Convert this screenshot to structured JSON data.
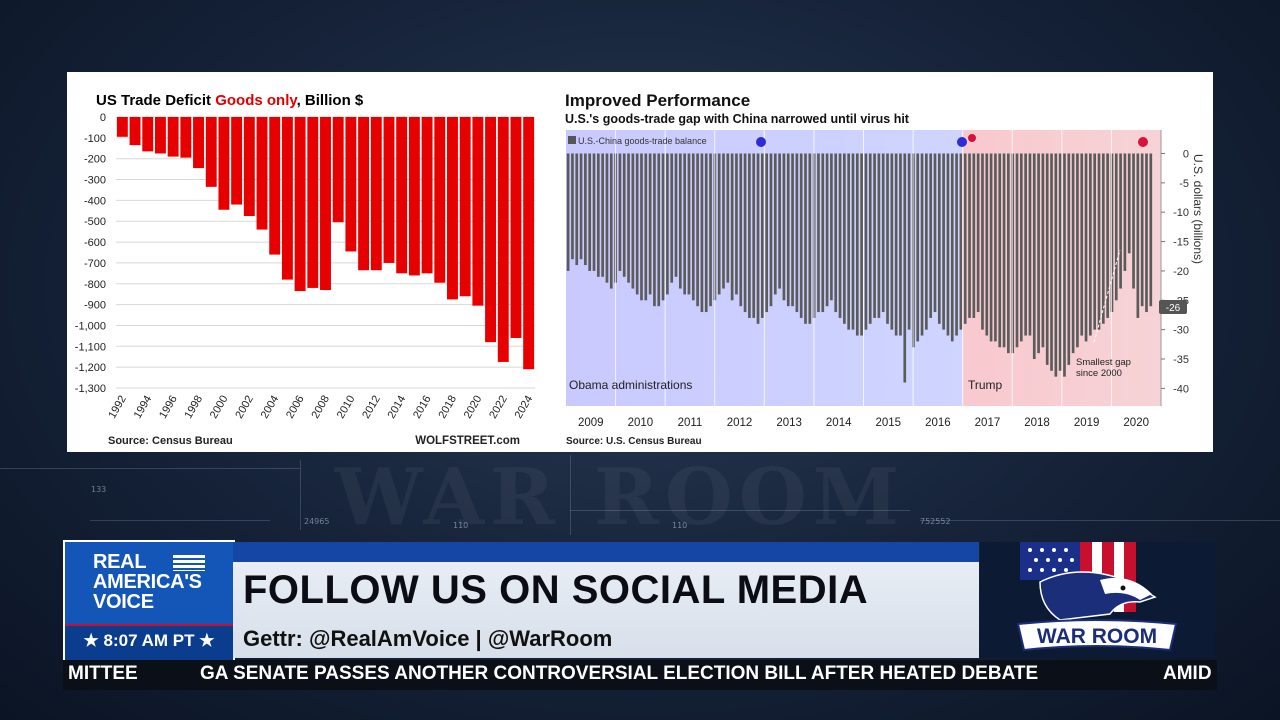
{
  "background": {
    "watermark": "WAR ROOM",
    "numbers": [
      "133",
      "24965",
      "110",
      "752552",
      "110"
    ]
  },
  "chart_data": [
    {
      "type": "bar",
      "title_parts": [
        "US Trade Deficit ",
        "Goods only",
        ", Billion $"
      ],
      "title_colors": [
        "#111111",
        "#e00000",
        "#111111"
      ],
      "bar_color": "#e60000",
      "years": [
        1992,
        1993,
        1994,
        1995,
        1996,
        1997,
        1998,
        1999,
        2000,
        2001,
        2002,
        2003,
        2004,
        2005,
        2006,
        2007,
        2008,
        2009,
        2010,
        2011,
        2012,
        2013,
        2014,
        2015,
        2016,
        2017,
        2018,
        2019,
        2020,
        2021,
        2022,
        2023,
        2024
      ],
      "values": [
        -95,
        -135,
        -165,
        -175,
        -190,
        -195,
        -245,
        -335,
        -445,
        -420,
        -475,
        -540,
        -660,
        -780,
        -835,
        -820,
        -830,
        -505,
        -645,
        -735,
        -735,
        -700,
        -750,
        -760,
        -750,
        -795,
        -875,
        -860,
        -905,
        -1080,
        -1175,
        -1060,
        -1210
      ],
      "ytick_labels": [
        "0",
        "-100",
        "-200",
        "-300",
        "-400",
        "-500",
        "-600",
        "-700",
        "-800",
        "-900",
        "-1,000",
        "-1,100",
        "-1,200",
        "-1,300"
      ],
      "xtick_labels": [
        "1992",
        "1994",
        "1996",
        "1998",
        "2000",
        "2002",
        "2004",
        "2006",
        "2008",
        "2010",
        "2012",
        "2014",
        "2016",
        "2018",
        "2020",
        "2022",
        "2024"
      ],
      "ylim": [
        -1300,
        0
      ],
      "grid": true,
      "source": "Source: Census Bureau",
      "credit": "WOLFSTREET.com"
    },
    {
      "type": "bar",
      "title": "Improved Performance",
      "subtitle": "U.S.'s goods-trade gap with China narrowed until virus hit",
      "legend": "U.S.-China goods-trade balance",
      "ylabel": "U.S. dollars (billions)",
      "ytick_labels": [
        "0",
        "-5",
        "-10",
        "-15",
        "-20",
        "-25",
        "-30",
        "-35",
        "-40"
      ],
      "ylim": [
        -43,
        4
      ],
      "xtick_labels": [
        "2009",
        "2010",
        "2011",
        "2012",
        "2013",
        "2014",
        "2015",
        "2016",
        "2017",
        "2018",
        "2019",
        "2020"
      ],
      "region_labels": [
        "Obama administrations",
        "Trump"
      ],
      "annotation": "Smallest gap\nsince 2000",
      "last_value_label": "-26",
      "source": "Source: U.S. Census Bureau",
      "monthly_values": [
        -20,
        -18,
        -19,
        -18,
        -19,
        -20,
        -20,
        -21,
        -21,
        -22,
        -23,
        -22,
        -20,
        -21,
        -22,
        -23,
        -24,
        -25,
        -25,
        -24,
        -26,
        -26,
        -25,
        -24,
        -22,
        -21,
        -23,
        -24,
        -24,
        -25,
        -26,
        -27,
        -27,
        -26,
        -25,
        -24,
        -23,
        -22,
        -25,
        -24,
        -26,
        -27,
        -28,
        -28,
        -29,
        -28,
        -27,
        -26,
        -24,
        -23,
        -25,
        -26,
        -26,
        -27,
        -28,
        -29,
        -29,
        -28,
        -27,
        -27,
        -26,
        -25,
        -27,
        -28,
        -29,
        -30,
        -30,
        -31,
        -31,
        -30,
        -29,
        -28,
        -28,
        -27,
        -29,
        -30,
        -31,
        -31,
        -39,
        -30,
        -33,
        -32,
        -31,
        -30,
        -28,
        -27,
        -29,
        -30,
        -31,
        -32,
        -31,
        -30,
        -29,
        -28,
        -28,
        -27,
        -30,
        -31,
        -32,
        -32,
        -33,
        -33,
        -34,
        -34,
        -33,
        -32,
        -31,
        -31,
        -35,
        -34,
        -33,
        -36,
        -37,
        -38,
        -37,
        -38,
        -36,
        -34,
        -33,
        -31,
        -32,
        -31,
        -30,
        -30,
        -29,
        -28,
        -27,
        -25,
        -23,
        -20,
        -17,
        -23,
        -28,
        -26,
        -27,
        -26
      ]
    }
  ],
  "lower_third": {
    "logo_lines": [
      "REAL",
      "AMERICA'S",
      "VOICE"
    ],
    "time": "★ 8:07 AM PT ★",
    "headline": "FOLLOW US ON SOCIAL MEDIA",
    "social_line": "Gettr: @RealAmVoice  |  @WarRoom",
    "brand": "WAR ROOM"
  },
  "ticker": {
    "left_fragment": "MITTEE",
    "main": "GA SENATE PASSES ANOTHER CONTROVERSIAL ELECTION BILL AFTER HEATED DEBATE",
    "right_fragment": "AMID"
  }
}
